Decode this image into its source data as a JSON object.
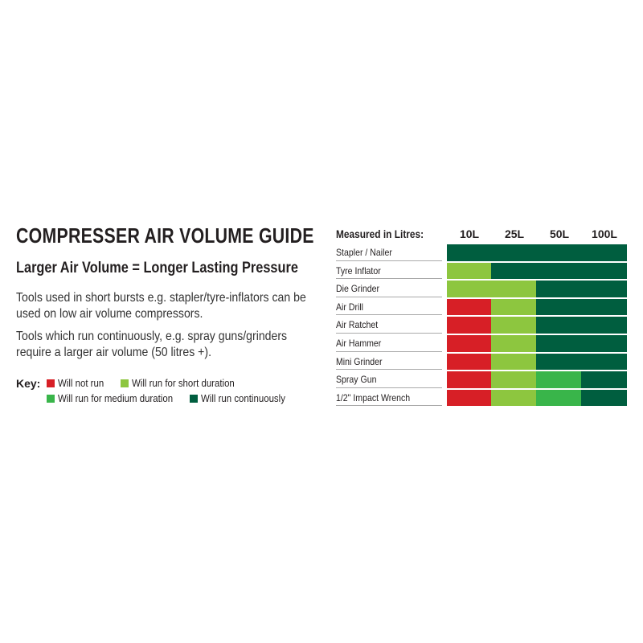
{
  "title": "COMPRESSER AIR VOLUME GUIDE",
  "subtitle": "Larger Air Volume = Longer Lasting Pressure",
  "paragraphs": [
    "Tools used in short bursts e.g. stapler/tyre-inflators can be used on low air volume compressors.",
    "Tools which run continuously, e.g. spray guns/grinders require a larger air volume (50 litres +)."
  ],
  "colors": {
    "none": "#d71f26",
    "short": "#8dc63f",
    "medium": "#39b54a",
    "continuous": "#005e3f"
  },
  "key": {
    "label": "Key:",
    "items": [
      {
        "state": "none",
        "label": "Will not run"
      },
      {
        "state": "short",
        "label": "Will run for short duration"
      },
      {
        "state": "medium",
        "label": "Will run for medium duration"
      },
      {
        "state": "continuous",
        "label": "Will run continuously"
      }
    ]
  },
  "table": {
    "header": "Measured in Litres:",
    "columns": [
      "10L",
      "25L",
      "50L",
      "100L"
    ],
    "rows": [
      {
        "tool": "Stapler / Nailer",
        "states": [
          "continuous",
          "continuous",
          "continuous",
          "continuous"
        ]
      },
      {
        "tool": "Tyre Inflator",
        "states": [
          "short",
          "continuous",
          "continuous",
          "continuous"
        ]
      },
      {
        "tool": "Die Grinder",
        "states": [
          "short",
          "short",
          "continuous",
          "continuous"
        ]
      },
      {
        "tool": "Air Drill",
        "states": [
          "none",
          "short",
          "continuous",
          "continuous"
        ]
      },
      {
        "tool": "Air Ratchet",
        "states": [
          "none",
          "short",
          "continuous",
          "continuous"
        ]
      },
      {
        "tool": "Air Hammer",
        "states": [
          "none",
          "short",
          "continuous",
          "continuous"
        ]
      },
      {
        "tool": "Mini Grinder",
        "states": [
          "none",
          "short",
          "continuous",
          "continuous"
        ]
      },
      {
        "tool": "Spray Gun",
        "states": [
          "none",
          "short",
          "medium",
          "continuous"
        ]
      },
      {
        "tool": "1/2\" Impact Wrench",
        "states": [
          "none",
          "short",
          "medium",
          "continuous"
        ]
      }
    ]
  }
}
